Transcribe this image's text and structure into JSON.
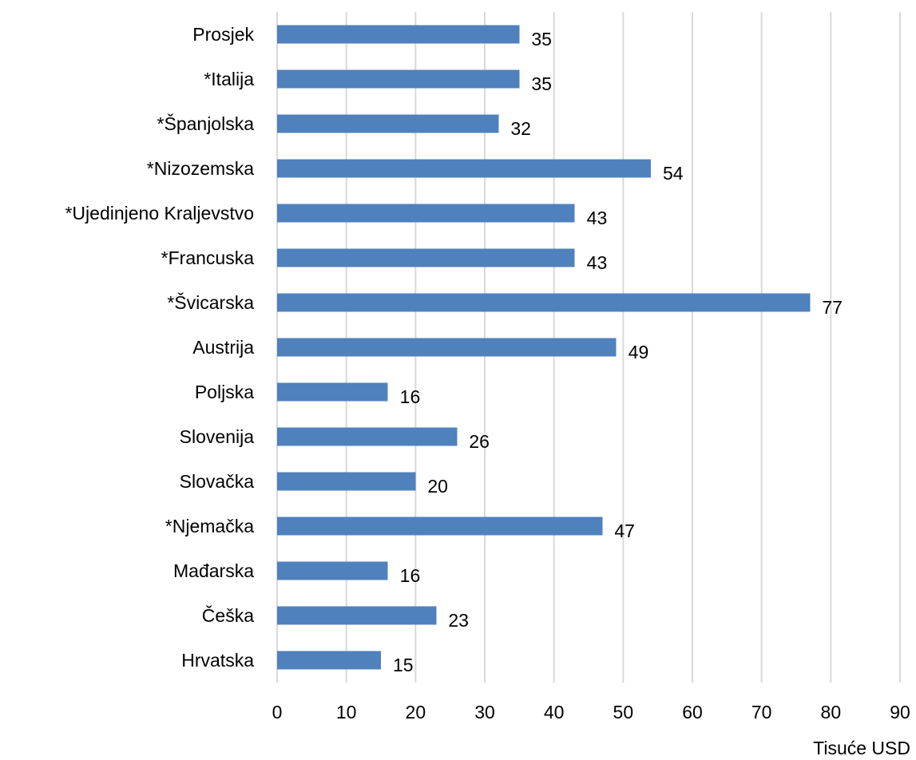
{
  "colors": {
    "bar": "#4f81bd",
    "gridline": "#d9d9d9",
    "text": "#000000",
    "background": "#ffffff"
  },
  "chart_data": {
    "type": "bar",
    "orientation": "horizontal",
    "categories": [
      "Prosjek",
      "*Italija",
      "*Španjolska",
      "*Nizozemska",
      "*Ujedinjeno Kraljevstvo",
      "*Francuska",
      "*Švicarska",
      "Austrija",
      "Poljska",
      "Slovenija",
      "Slovačka",
      "*Njemačka",
      "Mađarska",
      "Češka",
      "Hrvatska"
    ],
    "values": [
      35,
      35,
      32,
      54,
      43,
      43,
      77,
      49,
      16,
      26,
      20,
      47,
      16,
      23,
      15
    ],
    "data_labels": [
      "35",
      "35",
      "32",
      "54",
      "43",
      "43",
      "77",
      "49",
      "16",
      "26",
      "20",
      "47",
      "16",
      "23",
      "15"
    ],
    "xlabel": "Tisuće USD",
    "ylabel": "",
    "xlim": [
      0,
      90
    ],
    "xticks": [
      0,
      10,
      20,
      30,
      40,
      50,
      60,
      70,
      80,
      90
    ],
    "xtick_labels": [
      "0",
      "10",
      "20",
      "30",
      "40",
      "50",
      "60",
      "70",
      "80",
      "90"
    ],
    "grid": true,
    "grid_axis": "x",
    "legend": "none"
  }
}
